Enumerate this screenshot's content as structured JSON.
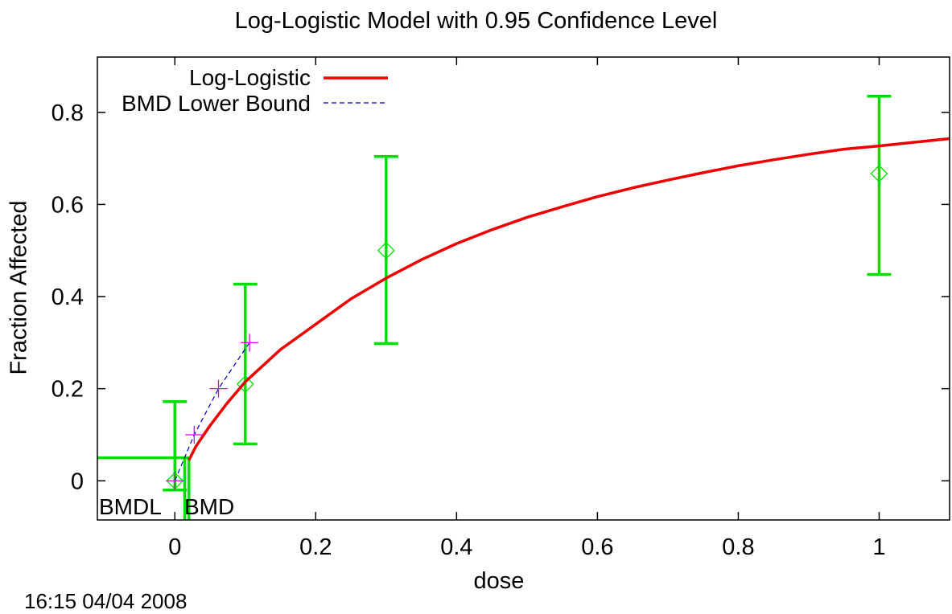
{
  "chart_data": {
    "type": "line",
    "title": "Log-Logistic Model with 0.95 Confidence Level",
    "xlabel": "dose",
    "ylabel": "Fraction Affected",
    "xlim": [
      -0.11,
      1.1
    ],
    "ylim": [
      -0.085,
      0.92
    ],
    "x_ticks": [
      0,
      0.2,
      0.4,
      0.6,
      0.8,
      1
    ],
    "x_tick_labels": [
      "0",
      "0.2",
      "0.4",
      "0.6",
      "0.8",
      "1"
    ],
    "y_ticks": [
      0,
      0.2,
      0.4,
      0.6,
      0.8
    ],
    "y_tick_labels": [
      "0",
      "0.2",
      "0.4",
      "0.6",
      "0.8"
    ],
    "legend_position": "top-left",
    "colors": {
      "model": "#ee0000",
      "bmdl": "#0000cc",
      "data": "#00e000",
      "bmdl_points": "#dd00dd"
    },
    "series": [
      {
        "name": "Log-Logistic",
        "style": "solid-red",
        "x": [
          0.02,
          0.03,
          0.05,
          0.075,
          0.1,
          0.15,
          0.2,
          0.25,
          0.3,
          0.35,
          0.4,
          0.45,
          0.5,
          0.55,
          0.6,
          0.65,
          0.7,
          0.75,
          0.8,
          0.85,
          0.9,
          0.95,
          1.0,
          1.05,
          1.1
        ],
        "y": [
          0.045,
          0.075,
          0.12,
          0.17,
          0.215,
          0.285,
          0.34,
          0.395,
          0.44,
          0.48,
          0.515,
          0.545,
          0.572,
          0.595,
          0.617,
          0.636,
          0.653,
          0.669,
          0.684,
          0.697,
          0.709,
          0.72,
          0.727,
          0.735,
          0.743
        ]
      },
      {
        "name": "BMD Lower Bound",
        "style": "dashed-blue",
        "x": [
          0.0,
          0.0275,
          0.062,
          0.106
        ],
        "y": [
          0.0,
          0.1,
          0.2,
          0.3
        ]
      }
    ],
    "data_points": [
      {
        "x": 0.0,
        "y": 0.0,
        "lower": -0.02,
        "upper": 0.172
      },
      {
        "x": 0.1,
        "y": 0.21,
        "lower": 0.08,
        "upper": 0.427
      },
      {
        "x": 0.3,
        "y": 0.5,
        "lower": 0.298,
        "upper": 0.704
      },
      {
        "x": 1.0,
        "y": 0.667,
        "lower": 0.448,
        "upper": 0.835
      }
    ],
    "bmdl_points": [
      {
        "x": 0.0,
        "y": 0.0
      },
      {
        "x": 0.0275,
        "y": 0.1
      },
      {
        "x": 0.062,
        "y": 0.2
      },
      {
        "x": 0.106,
        "y": 0.3
      }
    ],
    "bmr_level": 0.05,
    "bmdl": 0.014,
    "bmd": 0.02,
    "annotations": [
      "BMDL",
      "BMD"
    ]
  },
  "footer": {
    "timestamp": "16:15 04/04 2008"
  }
}
